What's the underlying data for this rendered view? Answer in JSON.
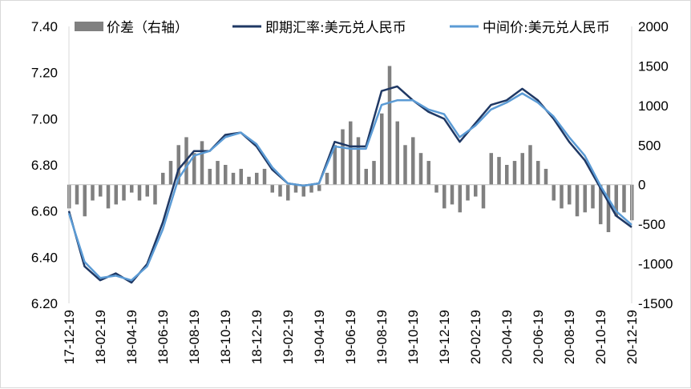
{
  "chart_data": {
    "type": "line",
    "legend_placement": "top",
    "grid": false,
    "colors": {
      "spread": "#808080",
      "spot": "#1f3864",
      "mid": "#5b9bd5"
    },
    "left_axis": {
      "ylim": [
        6.2,
        7.4
      ],
      "ticks": [
        "6.20",
        "6.40",
        "6.60",
        "6.80",
        "7.00",
        "7.20",
        "7.40"
      ]
    },
    "right_axis": {
      "ylim": [
        -1500,
        2000
      ],
      "ticks": [
        "-1500",
        "-1000",
        "-500",
        "0",
        "500",
        "1000",
        "1500",
        "2000"
      ]
    },
    "x_ticks": [
      "17-12-19",
      "18-02-19",
      "18-04-19",
      "18-06-19",
      "18-08-19",
      "18-10-19",
      "18-12-19",
      "19-02-19",
      "19-04-19",
      "19-06-19",
      "19-08-19",
      "19-10-19",
      "19-12-19",
      "20-02-19",
      "20-04-19",
      "20-06-19",
      "20-08-19",
      "20-10-19",
      "20-12-19"
    ],
    "legend": {
      "spread": "价差（右轴）",
      "spot": "即期汇率:美元兑人民币",
      "mid": "中间价:美元兑人民币"
    },
    "series_monthly_from": "17-12",
    "spot": [
      6.6,
      6.36,
      6.3,
      6.33,
      6.29,
      6.37,
      6.55,
      6.78,
      6.86,
      6.86,
      6.93,
      6.94,
      6.88,
      6.78,
      6.72,
      6.71,
      6.72,
      6.9,
      6.88,
      6.88,
      7.12,
      7.14,
      7.08,
      7.03,
      7.0,
      6.9,
      6.98,
      7.06,
      7.08,
      7.13,
      7.08,
      7.0,
      6.9,
      6.82,
      6.7,
      6.58,
      6.53
    ],
    "mid": [
      6.59,
      6.38,
      6.31,
      6.32,
      6.3,
      6.36,
      6.52,
      6.74,
      6.84,
      6.86,
      6.92,
      6.94,
      6.89,
      6.79,
      6.72,
      6.71,
      6.72,
      6.88,
      6.87,
      6.87,
      7.06,
      7.08,
      7.08,
      7.04,
      7.02,
      6.92,
      6.97,
      7.04,
      7.07,
      7.11,
      7.07,
      7.01,
      6.92,
      6.84,
      6.71,
      6.6,
      6.54
    ],
    "spread_semimonthly": [
      -300,
      -250,
      -400,
      -200,
      -150,
      -300,
      -250,
      -200,
      -100,
      -200,
      -150,
      -250,
      150,
      300,
      500,
      600,
      400,
      550,
      200,
      300,
      250,
      150,
      200,
      100,
      150,
      200,
      -100,
      -150,
      -200,
      -100,
      -150,
      -100,
      -80,
      150,
      500,
      700,
      800,
      600,
      200,
      300,
      900,
      1500,
      800,
      500,
      600,
      400,
      300,
      -100,
      -300,
      -250,
      -350,
      -200,
      -150,
      -300,
      400,
      350,
      250,
      300,
      400,
      500,
      300,
      200,
      -200,
      -300,
      -250,
      -400,
      -350,
      -300,
      -500,
      -600,
      -400,
      -350,
      -450
    ]
  }
}
